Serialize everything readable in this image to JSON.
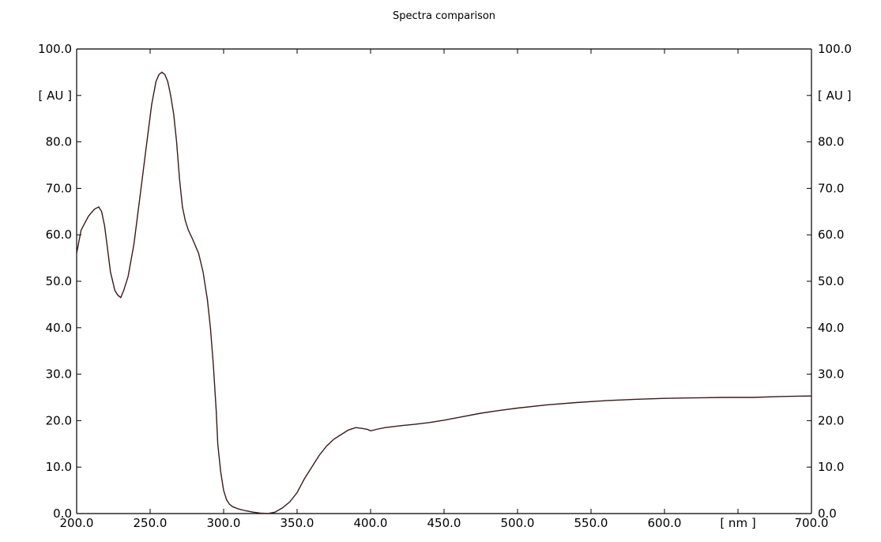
{
  "chart_data": {
    "type": "line",
    "title": "Spectra comparison",
    "ylabel_left": "[ AU ]",
    "ylabel_right": "[ AU ]",
    "xlabel": "[ nm ]",
    "xlim": [
      200,
      700
    ],
    "ylim": [
      0,
      100
    ],
    "x_ticks": [
      200,
      250,
      300,
      350,
      400,
      450,
      500,
      550,
      600,
      700
    ],
    "x_tick_labels": [
      "200.0",
      "250.0",
      "300.0",
      "350.0",
      "400.0",
      "450.0",
      "500.0",
      "550.0",
      "600.0",
      "700.0"
    ],
    "y_ticks": [
      0,
      10,
      20,
      30,
      40,
      50,
      60,
      70,
      80,
      100
    ],
    "y_tick_labels": [
      "0.0",
      "10.0",
      "20.0",
      "30.0",
      "40.0",
      "50.0",
      "60.0",
      "70.0",
      "80.0",
      "100.0"
    ],
    "grid": false,
    "series": [
      {
        "color": "#3a1a1a",
        "x": [
          200,
          203,
          208,
          212,
          215,
          217,
          219,
          221,
          223,
          226,
          228,
          230,
          232,
          235,
          239,
          243,
          247,
          251,
          254,
          256,
          258,
          260,
          262,
          264,
          266,
          268,
          270,
          272,
          274,
          276,
          279,
          283,
          286,
          289,
          291,
          293,
          295,
          296,
          298,
          300,
          302,
          304,
          306,
          310,
          315,
          320,
          325,
          330,
          335,
          340,
          345,
          350,
          355,
          360,
          365,
          370,
          375,
          380,
          385,
          390,
          395,
          398,
          400,
          405,
          410,
          420,
          430,
          440,
          450,
          460,
          475,
          490,
          500,
          520,
          540,
          560,
          580,
          600,
          620,
          640,
          660,
          680,
          700
        ],
        "y": [
          56,
          61,
          64,
          65.5,
          66,
          65,
          62,
          57,
          52,
          48,
          47,
          46.5,
          48,
          51,
          58,
          68,
          78,
          88,
          93,
          94.5,
          95,
          94.5,
          93,
          90,
          86,
          80,
          72,
          66,
          63,
          61,
          59,
          56,
          52,
          46,
          40,
          32,
          22,
          15,
          9,
          5,
          3,
          2,
          1.5,
          1,
          0.6,
          0.3,
          0.1,
          0,
          0.3,
          1.2,
          2.5,
          4.5,
          7.5,
          10,
          12.5,
          14.5,
          16,
          17,
          18,
          18.5,
          18.3,
          18.1,
          17.8,
          18.2,
          18.5,
          18.9,
          19.2,
          19.6,
          20.1,
          20.7,
          21.6,
          22.3,
          22.7,
          23.4,
          23.9,
          24.3,
          24.6,
          24.8,
          24.9,
          25,
          25,
          25.2,
          25.3
        ]
      }
    ]
  }
}
